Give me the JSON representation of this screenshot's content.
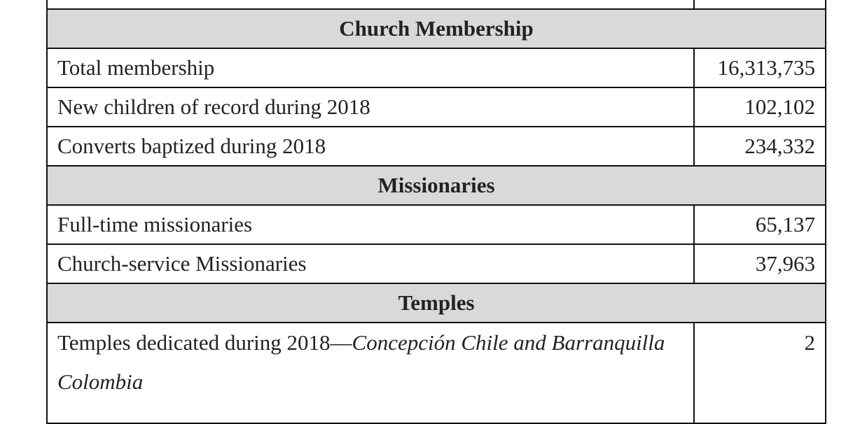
{
  "sections": [
    {
      "title": "Church Membership",
      "rows": [
        {
          "label": "Total membership",
          "value": "16,313,735"
        },
        {
          "label": "New children of record during 2018",
          "value": "102,102"
        },
        {
          "label": "Converts baptized during 2018",
          "value": "234,332"
        }
      ]
    },
    {
      "title": "Missionaries",
      "rows": [
        {
          "label": "Full-time missionaries",
          "value": "65,137"
        },
        {
          "label": "Church-service Missionaries",
          "value": "37,963"
        }
      ]
    },
    {
      "title": "Temples",
      "rows": [
        {
          "label": "Temples dedicated during 2018—",
          "label_italic": "Concepción Chile and Barranquilla Colombia",
          "value": "2"
        }
      ]
    }
  ]
}
